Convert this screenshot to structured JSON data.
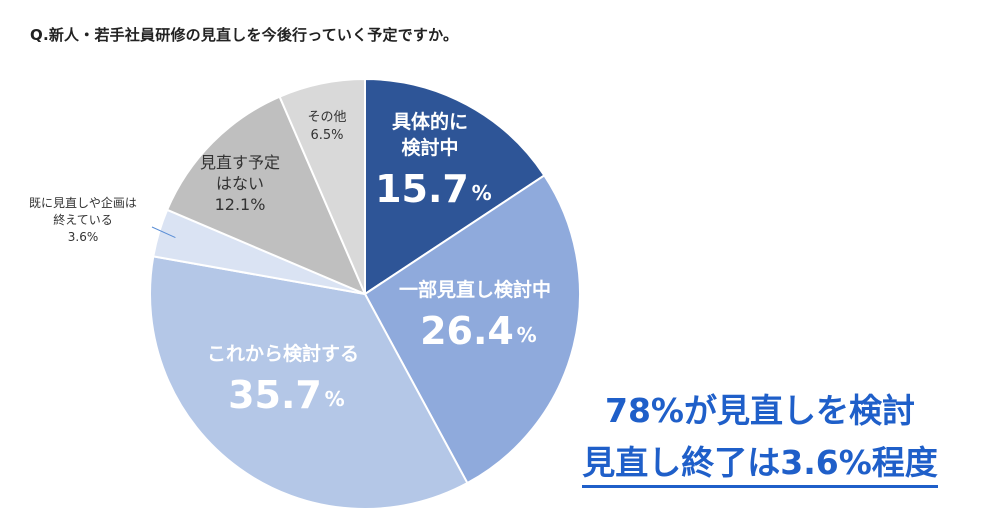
{
  "question": "Q.新人・若手社員研修の見直しを今後行っていく予定ですか。",
  "chart_data": {
    "type": "pie",
    "start_angle_deg": 0,
    "direction": "clockwise",
    "unit": "%",
    "slices": [
      {
        "label_lines": [
          "具体的に",
          "検討中"
        ],
        "value": 15.7,
        "value_text": "15.7",
        "color": "#2e5597",
        "label_color": "#ffffff",
        "style": "large"
      },
      {
        "label_lines": [
          "一部見直し検討中"
        ],
        "value": 26.4,
        "value_text": "26.4",
        "color": "#8faadc",
        "label_color": "#ffffff",
        "style": "large"
      },
      {
        "label_lines": [
          "これから検討する"
        ],
        "value": 35.7,
        "value_text": "35.7",
        "color": "#b4c7e7",
        "label_color": "#ffffff",
        "style": "large"
      },
      {
        "label_lines": [
          "既に見直しや企画は",
          "終えている"
        ],
        "value": 3.6,
        "value_text": "3.6%",
        "color": "#dae3f3",
        "label_color": "#333333",
        "style": "outside"
      },
      {
        "label_lines": [
          "見直す予定",
          "はない"
        ],
        "value": 12.1,
        "value_text": "12.1%",
        "color": "#bfbfbf",
        "label_color": "#333333",
        "style": "small"
      },
      {
        "label_lines": [
          "その他"
        ],
        "value": 6.5,
        "value_text": "6.5%",
        "color": "#d9d9d9",
        "label_color": "#333333",
        "style": "tiny"
      }
    ]
  },
  "callout": {
    "line1": "78%が見直しを検討",
    "line2": "見直し終了は3.6%程度",
    "color": "#1f5fc9"
  }
}
